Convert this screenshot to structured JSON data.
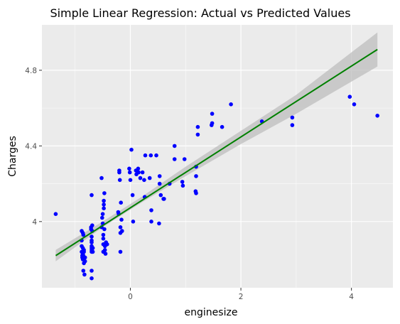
{
  "chart_data": {
    "type": "scatter",
    "title": "Simple Linear Regression: Actual vs Predicted Values",
    "xlabel": "enginesize",
    "ylabel": "Charges",
    "xlim": [
      -1.6,
      4.75
    ],
    "ylim": [
      3.65,
      5.04
    ],
    "x_ticks": [
      0,
      2,
      4
    ],
    "x_tick_labels": [
      "0",
      "2",
      "4"
    ],
    "y_ticks": [
      4.0,
      4.4,
      4.8
    ],
    "y_tick_labels": [
      "4",
      "4.4",
      "4.8"
    ],
    "grid": true,
    "legend": "none",
    "colors": {
      "panel": "#ebebeb",
      "grid_major": "#ffffff",
      "points": "#0000ff",
      "fit_line": "#008000",
      "confidence_band": "#bdbdbd"
    },
    "series": [
      {
        "type": "points",
        "x": [
          -1.35,
          -0.88,
          -0.88,
          -0.88,
          -0.88,
          -0.87,
          -0.87,
          -0.86,
          -0.86,
          -0.86,
          -0.86,
          -0.85,
          -0.85,
          -0.85,
          -0.84,
          -0.84,
          -0.84,
          -0.83,
          -0.83,
          -0.82,
          -0.82,
          -0.71,
          -0.71,
          -0.7,
          -0.7,
          -0.7,
          -0.7,
          -0.7,
          -0.7,
          -0.7,
          -0.7,
          -0.7,
          -0.7,
          -0.69,
          -0.69,
          -0.68,
          -0.68,
          -0.52,
          -0.52,
          -0.51,
          -0.5,
          -0.5,
          -0.49,
          -0.49,
          -0.49,
          -0.49,
          -0.48,
          -0.48,
          -0.48,
          -0.47,
          -0.47,
          -0.46,
          -0.46,
          -0.45,
          -0.44,
          -0.42,
          -0.22,
          -0.21,
          -0.2,
          -0.2,
          -0.19,
          -0.18,
          -0.18,
          -0.18,
          -0.16,
          -0.17,
          -0.15,
          -0.02,
          -0.01,
          0.0,
          0.02,
          0.04,
          0.05,
          0.1,
          0.11,
          0.14,
          0.15,
          0.18,
          0.22,
          0.25,
          0.26,
          0.27,
          0.35,
          0.37,
          0.38,
          0.38,
          0.47,
          0.52,
          0.53,
          0.53,
          0.55,
          0.6,
          0.61,
          0.71,
          0.8,
          0.8,
          0.94,
          0.95,
          0.98,
          1.18,
          1.19,
          1.19,
          1.19,
          1.22,
          1.22,
          1.47,
          1.48,
          1.48,
          1.66,
          1.82,
          2.38,
          2.93,
          2.93,
          3.97,
          4.05,
          4.47
        ],
        "y": [
          4.04,
          3.95,
          3.9,
          3.87,
          3.84,
          3.82,
          3.81,
          3.8,
          3.83,
          3.86,
          3.94,
          3.93,
          3.74,
          3.82,
          3.78,
          3.84,
          3.85,
          3.72,
          3.81,
          3.81,
          3.79,
          3.97,
          3.96,
          3.92,
          3.9,
          3.89,
          3.87,
          3.86,
          3.85,
          3.84,
          3.74,
          3.7,
          4.14,
          3.98,
          3.95,
          3.86,
          3.84,
          4.23,
          3.97,
          4.02,
          4.04,
          3.99,
          3.93,
          3.91,
          3.88,
          3.84,
          4.07,
          4.09,
          4.11,
          4.15,
          3.96,
          3.85,
          3.87,
          3.83,
          3.89,
          3.88,
          4.05,
          4.04,
          4.27,
          4.26,
          4.22,
          3.97,
          3.94,
          3.84,
          4.01,
          4.1,
          3.95,
          4.28,
          4.26,
          4.22,
          4.38,
          4.14,
          4.0,
          4.27,
          4.25,
          4.28,
          4.26,
          4.23,
          4.26,
          4.22,
          4.13,
          4.35,
          4.23,
          4.35,
          4.06,
          4.0,
          4.35,
          3.99,
          4.24,
          4.2,
          4.14,
          4.12,
          4.12,
          4.2,
          4.4,
          4.33,
          4.21,
          4.19,
          4.33,
          4.16,
          4.15,
          4.29,
          4.24,
          4.5,
          4.46,
          4.51,
          4.52,
          4.57,
          4.5,
          4.62,
          4.53,
          4.51,
          4.55,
          4.66,
          4.62,
          4.56
        ]
      },
      {
        "type": "fit_line",
        "x": [
          -1.35,
          4.47
        ],
        "y": [
          3.82,
          4.91
        ]
      },
      {
        "type": "confidence_band",
        "x": [
          -1.35,
          -0.5,
          0.2,
          1.0,
          2.0,
          3.0,
          4.47
        ],
        "lower": [
          3.79,
          3.97,
          4.1,
          4.24,
          4.41,
          4.57,
          4.82
        ],
        "upper": [
          3.85,
          4.0,
          4.13,
          4.29,
          4.48,
          4.67,
          5.0
        ]
      }
    ]
  }
}
